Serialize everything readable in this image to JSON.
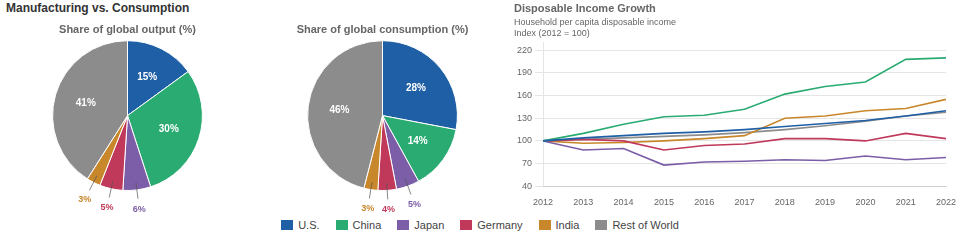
{
  "title": "Manufacturing vs. Consumption",
  "chart_data": [
    {
      "type": "pie",
      "title": "Share of global output (%)",
      "values": [
        15,
        30,
        6,
        5,
        3,
        41
      ],
      "value_labels": [
        "15%",
        "30%",
        "6%",
        "5%",
        "3%",
        "41%"
      ],
      "colors": [
        "#1f5fa6",
        "#2aab72",
        "#7b5ea7",
        "#c0395a",
        "#c8872a",
        "#8c8c8c"
      ],
      "data_labels": true
    },
    {
      "type": "pie",
      "title": "Share of global consumption (%)",
      "values": [
        28,
        14,
        5,
        4,
        3,
        46
      ],
      "value_labels": [
        "28%",
        "14%",
        "5%",
        "4%",
        "3%",
        "46%"
      ],
      "colors": [
        "#1f5fa6",
        "#2aab72",
        "#7b5ea7",
        "#c0395a",
        "#c8872a",
        "#8c8c8c"
      ],
      "data_labels": true
    },
    {
      "type": "line",
      "title": "Disposable Income Growth",
      "subtitle": [
        "Household per capita disposable income",
        "Index (2012 = 100)"
      ],
      "x": [
        2012,
        2013,
        2014,
        2015,
        2016,
        2017,
        2018,
        2019,
        2020,
        2021,
        2022
      ],
      "xlim": [
        2012,
        2022
      ],
      "xticks": [
        2012,
        2013,
        2014,
        2015,
        2016,
        2017,
        2018,
        2019,
        2020,
        2021,
        2022
      ],
      "ylim": [
        40,
        230
      ],
      "yticks": [
        40,
        70,
        100,
        130,
        160,
        190,
        220
      ],
      "grid": true,
      "legend": "bottom",
      "series": [
        {
          "name": "U.S.",
          "color": "#1f5fa6",
          "values": [
            100,
            104,
            107,
            110,
            112,
            115,
            119,
            123,
            127,
            133,
            140
          ]
        },
        {
          "name": "China",
          "color": "#2aab72",
          "values": [
            100,
            110,
            122,
            132,
            134,
            142,
            162,
            172,
            178,
            208,
            210
          ]
        },
        {
          "name": "Japan",
          "color": "#7b5ea7",
          "values": [
            100,
            88,
            90,
            68,
            72,
            73,
            75,
            74,
            80,
            75,
            78
          ]
        },
        {
          "name": "Germany",
          "color": "#c0395a",
          "values": [
            100,
            102,
            100,
            88,
            94,
            96,
            103,
            103,
            100,
            110,
            103
          ]
        },
        {
          "name": "India",
          "color": "#c8872a",
          "values": [
            100,
            97,
            98,
            100,
            103,
            107,
            130,
            133,
            140,
            143,
            155
          ]
        },
        {
          "name": "Rest of World",
          "color": "#8c8c8c",
          "values": [
            100,
            102,
            104,
            106,
            108,
            111,
            115,
            120,
            126,
            133,
            138
          ]
        }
      ]
    }
  ]
}
